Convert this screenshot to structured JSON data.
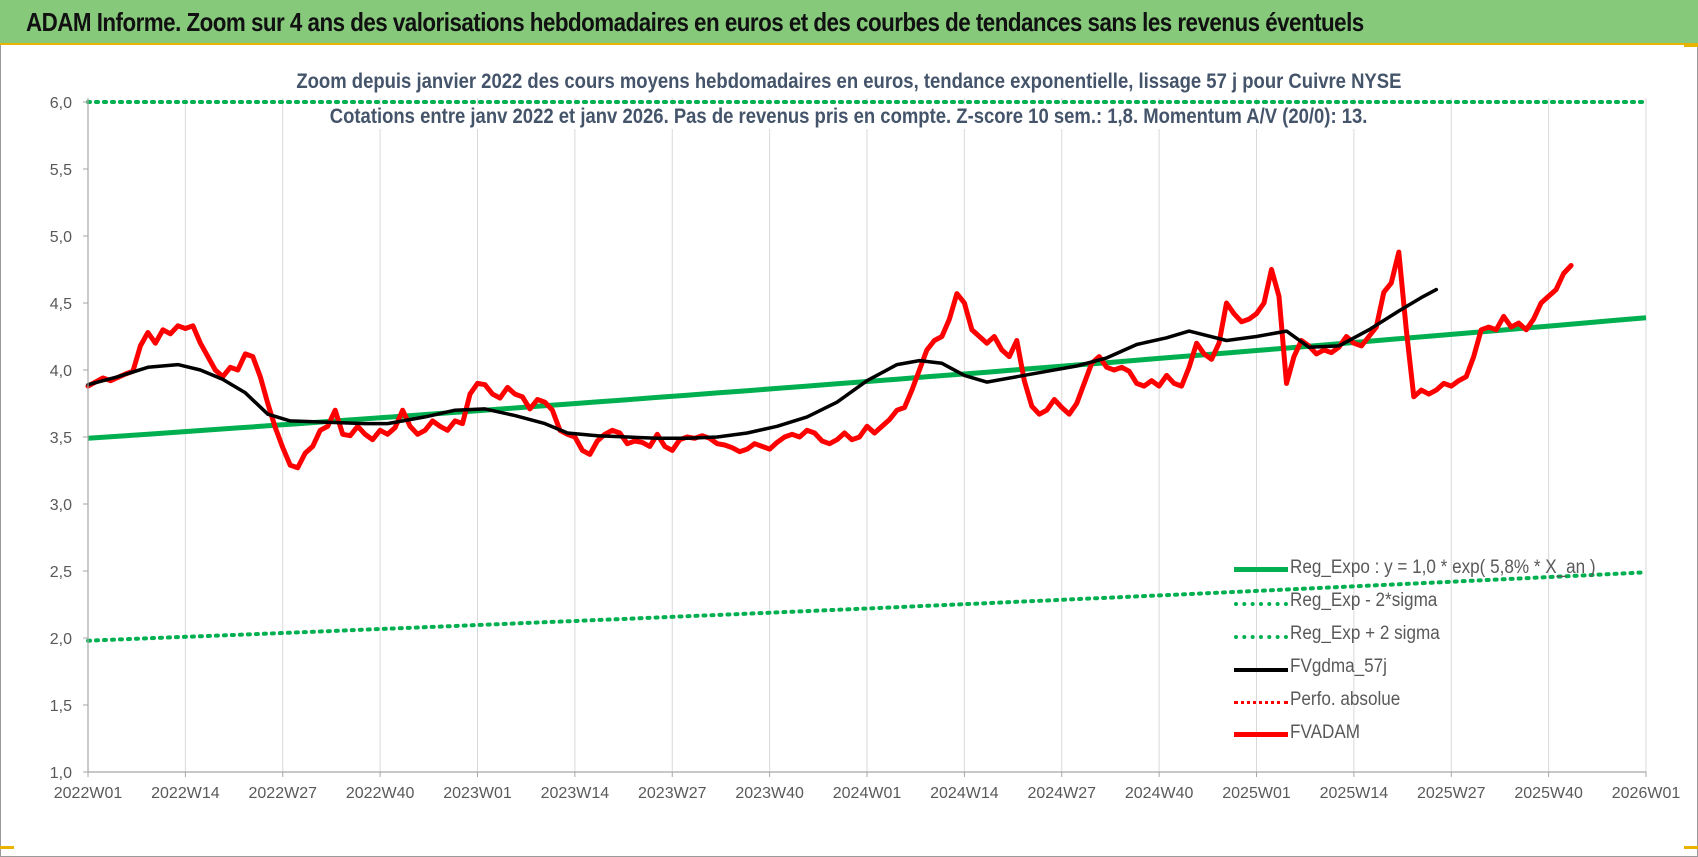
{
  "banner": {
    "title": "ADAM Informe. Zoom sur 4 ans des valorisations hebdomadaires en euros et des courbes de tendances sans les revenus éventuels"
  },
  "colors": {
    "banner_bg": "#86c97b",
    "banner_border": "#e8b400",
    "regression": "#00b050",
    "sigma": "#00b050",
    "smoothing": "#000000",
    "price": "#ff0000",
    "perfo": "#ff0000",
    "subtitle_text": "#44546a",
    "axis_text": "#595959"
  },
  "chart_data": {
    "type": "line",
    "title": "Zoom depuis janvier 2022 des cours moyens hebdomadaires en euros, tendance exponentielle, lissage 57 j pour Cuivre NYSE",
    "subtitle": "Cotations entre janv 2022 et janv 2026. Pas de revenus pris en compte. Z-score 10 sem.: 1,8. Momentum A/V (20/0): 13.",
    "xlabel": "",
    "ylabel": "",
    "ylim": [
      1.0,
      6.0
    ],
    "yticks": [
      "1,0",
      "1,5",
      "2,0",
      "2,5",
      "3,0",
      "3,5",
      "4,0",
      "4,5",
      "5,0",
      "5,5",
      "6,0"
    ],
    "xticks": [
      "2022W01",
      "2022W14",
      "2022W27",
      "2022W40",
      "2023W01",
      "2023W14",
      "2023W27",
      "2023W40",
      "2024W01",
      "2024W14",
      "2024W27",
      "2024W40",
      "2025W01",
      "2025W14",
      "2025W27",
      "2025W40",
      "2026W01"
    ],
    "grid": "vertical",
    "legend_position": "bottom-right",
    "series": [
      {
        "name": "Reg_Expo : y = 1,0 * exp( 5,8% * X_an )",
        "style": "solid-thick",
        "color": "#00b050",
        "start": 3.49,
        "end": 4.39
      },
      {
        "name": "Reg_Exp - 2*sigma",
        "style": "dotted",
        "color": "#00b050",
        "start": 1.98,
        "end": 2.49
      },
      {
        "name": "Reg_Exp + 2 sigma",
        "style": "dotted",
        "color": "#00b050",
        "start": 6.0,
        "end": 6.0
      },
      {
        "name": "FVgdma_57j",
        "style": "solid",
        "color": "#000000",
        "points": [
          [
            0,
            3.89
          ],
          [
            4,
            3.95
          ],
          [
            8,
            4.02
          ],
          [
            12,
            4.04
          ],
          [
            15,
            4.0
          ],
          [
            18,
            3.93
          ],
          [
            21,
            3.83
          ],
          [
            24,
            3.67
          ],
          [
            27,
            3.62
          ],
          [
            32,
            3.61
          ],
          [
            37,
            3.6
          ],
          [
            40,
            3.6
          ],
          [
            45,
            3.65
          ],
          [
            49,
            3.7
          ],
          [
            53,
            3.71
          ],
          [
            57,
            3.66
          ],
          [
            61,
            3.6
          ],
          [
            64,
            3.53
          ],
          [
            68,
            3.51
          ],
          [
            72,
            3.5
          ],
          [
            76,
            3.49
          ],
          [
            80,
            3.49
          ],
          [
            84,
            3.5
          ],
          [
            88,
            3.53
          ],
          [
            92,
            3.58
          ],
          [
            96,
            3.65
          ],
          [
            100,
            3.76
          ],
          [
            104,
            3.92
          ],
          [
            108,
            4.04
          ],
          [
            111,
            4.07
          ],
          [
            114,
            4.05
          ],
          [
            117,
            3.96
          ],
          [
            120,
            3.91
          ],
          [
            124,
            3.95
          ],
          [
            128,
            3.99
          ],
          [
            132,
            4.03
          ],
          [
            136,
            4.09
          ],
          [
            140,
            4.19
          ],
          [
            144,
            4.24
          ],
          [
            147,
            4.29
          ],
          [
            152,
            4.22
          ],
          [
            156,
            4.25
          ],
          [
            160,
            4.29
          ],
          [
            163,
            4.17
          ],
          [
            167,
            4.18
          ],
          [
            171,
            4.3
          ],
          [
            175,
            4.44
          ],
          [
            178,
            4.54
          ],
          [
            180,
            4.6
          ]
        ]
      },
      {
        "name": "Perfo. absolue",
        "style": "dotted",
        "color": "#ff0000",
        "points": []
      },
      {
        "name": "FVADAM",
        "style": "solid-thick",
        "color": "#ff0000",
        "points": [
          [
            0,
            3.88
          ],
          [
            2,
            3.94
          ],
          [
            3,
            3.92
          ],
          [
            5,
            3.97
          ],
          [
            6,
            3.99
          ],
          [
            7,
            4.18
          ],
          [
            8,
            4.28
          ],
          [
            9,
            4.2
          ],
          [
            10,
            4.3
          ],
          [
            11,
            4.27
          ],
          [
            12,
            4.33
          ],
          [
            13,
            4.31
          ],
          [
            14,
            4.33
          ],
          [
            15,
            4.2
          ],
          [
            17,
            4.0
          ],
          [
            18,
            3.95
          ],
          [
            19,
            4.02
          ],
          [
            20,
            4.0
          ],
          [
            21,
            4.12
          ],
          [
            22,
            4.1
          ],
          [
            23,
            3.95
          ],
          [
            24,
            3.75
          ],
          [
            25,
            3.57
          ],
          [
            26,
            3.42
          ],
          [
            27,
            3.29
          ],
          [
            28,
            3.27
          ],
          [
            29,
            3.38
          ],
          [
            30,
            3.43
          ],
          [
            31,
            3.55
          ],
          [
            32,
            3.58
          ],
          [
            33,
            3.7
          ],
          [
            34,
            3.52
          ],
          [
            35,
            3.51
          ],
          [
            36,
            3.58
          ],
          [
            37,
            3.52
          ],
          [
            38,
            3.48
          ],
          [
            39,
            3.55
          ],
          [
            40,
            3.52
          ],
          [
            41,
            3.57
          ],
          [
            42,
            3.7
          ],
          [
            43,
            3.58
          ],
          [
            44,
            3.52
          ],
          [
            45,
            3.55
          ],
          [
            46,
            3.62
          ],
          [
            47,
            3.58
          ],
          [
            48,
            3.55
          ],
          [
            49,
            3.62
          ],
          [
            50,
            3.6
          ],
          [
            51,
            3.82
          ],
          [
            52,
            3.9
          ],
          [
            53,
            3.89
          ],
          [
            54,
            3.82
          ],
          [
            55,
            3.79
          ],
          [
            56,
            3.87
          ],
          [
            57,
            3.82
          ],
          [
            58,
            3.8
          ],
          [
            59,
            3.71
          ],
          [
            60,
            3.78
          ],
          [
            61,
            3.76
          ],
          [
            62,
            3.7
          ],
          [
            63,
            3.55
          ],
          [
            64,
            3.52
          ],
          [
            65,
            3.5
          ],
          [
            66,
            3.4
          ],
          [
            67,
            3.37
          ],
          [
            68,
            3.47
          ],
          [
            69,
            3.52
          ],
          [
            70,
            3.55
          ],
          [
            71,
            3.53
          ],
          [
            72,
            3.45
          ],
          [
            73,
            3.47
          ],
          [
            74,
            3.46
          ],
          [
            75,
            3.43
          ],
          [
            76,
            3.52
          ],
          [
            77,
            3.43
          ],
          [
            78,
            3.4
          ],
          [
            79,
            3.48
          ],
          [
            80,
            3.5
          ],
          [
            81,
            3.49
          ],
          [
            82,
            3.51
          ],
          [
            83,
            3.49
          ],
          [
            84,
            3.45
          ],
          [
            85,
            3.44
          ],
          [
            86,
            3.42
          ],
          [
            87,
            3.39
          ],
          [
            88,
            3.41
          ],
          [
            89,
            3.45
          ],
          [
            90,
            3.43
          ],
          [
            91,
            3.41
          ],
          [
            92,
            3.46
          ],
          [
            93,
            3.5
          ],
          [
            94,
            3.52
          ],
          [
            95,
            3.5
          ],
          [
            96,
            3.55
          ],
          [
            97,
            3.53
          ],
          [
            98,
            3.47
          ],
          [
            99,
            3.45
          ],
          [
            100,
            3.48
          ],
          [
            101,
            3.53
          ],
          [
            102,
            3.48
          ],
          [
            103,
            3.5
          ],
          [
            104,
            3.58
          ],
          [
            105,
            3.53
          ],
          [
            106,
            3.58
          ],
          [
            107,
            3.63
          ],
          [
            108,
            3.7
          ],
          [
            109,
            3.72
          ],
          [
            110,
            3.85
          ],
          [
            111,
            4.0
          ],
          [
            112,
            4.15
          ],
          [
            113,
            4.22
          ],
          [
            114,
            4.25
          ],
          [
            115,
            4.38
          ],
          [
            116,
            4.57
          ],
          [
            117,
            4.5
          ],
          [
            118,
            4.3
          ],
          [
            119,
            4.25
          ],
          [
            120,
            4.2
          ],
          [
            121,
            4.25
          ],
          [
            122,
            4.15
          ],
          [
            123,
            4.1
          ],
          [
            124,
            4.22
          ],
          [
            125,
            3.92
          ],
          [
            126,
            3.73
          ],
          [
            127,
            3.67
          ],
          [
            128,
            3.7
          ],
          [
            129,
            3.78
          ],
          [
            130,
            3.72
          ],
          [
            131,
            3.67
          ],
          [
            132,
            3.75
          ],
          [
            133,
            3.9
          ],
          [
            134,
            4.05
          ],
          [
            135,
            4.1
          ],
          [
            136,
            4.02
          ],
          [
            137,
            4.0
          ],
          [
            138,
            4.02
          ],
          [
            139,
            3.99
          ],
          [
            140,
            3.9
          ],
          [
            141,
            3.88
          ],
          [
            142,
            3.92
          ],
          [
            143,
            3.88
          ],
          [
            144,
            3.96
          ],
          [
            145,
            3.9
          ],
          [
            146,
            3.88
          ],
          [
            147,
            4.02
          ],
          [
            148,
            4.2
          ],
          [
            149,
            4.12
          ],
          [
            150,
            4.08
          ],
          [
            151,
            4.2
          ],
          [
            152,
            4.5
          ],
          [
            153,
            4.42
          ],
          [
            154,
            4.36
          ],
          [
            155,
            4.38
          ],
          [
            156,
            4.42
          ],
          [
            157,
            4.5
          ],
          [
            158,
            4.75
          ],
          [
            159,
            4.55
          ],
          [
            160,
            3.9
          ],
          [
            161,
            4.1
          ],
          [
            162,
            4.22
          ],
          [
            163,
            4.18
          ],
          [
            164,
            4.12
          ],
          [
            165,
            4.15
          ],
          [
            166,
            4.13
          ],
          [
            167,
            4.17
          ],
          [
            168,
            4.25
          ],
          [
            169,
            4.2
          ],
          [
            170,
            4.18
          ],
          [
            171,
            4.25
          ],
          [
            172,
            4.32
          ],
          [
            173,
            4.58
          ],
          [
            174,
            4.65
          ],
          [
            175,
            4.88
          ],
          [
            176,
            4.3
          ],
          [
            177,
            3.8
          ],
          [
            178,
            3.85
          ],
          [
            179,
            3.82
          ],
          [
            180,
            3.85
          ],
          [
            181,
            3.9
          ],
          [
            182,
            3.88
          ],
          [
            183,
            3.92
          ],
          [
            184,
            3.95
          ],
          [
            185,
            4.1
          ],
          [
            186,
            4.3
          ],
          [
            187,
            4.32
          ],
          [
            188,
            4.3
          ],
          [
            189,
            4.4
          ],
          [
            190,
            4.32
          ],
          [
            191,
            4.35
          ],
          [
            192,
            4.3
          ],
          [
            193,
            4.38
          ],
          [
            194,
            4.5
          ],
          [
            195,
            4.55
          ],
          [
            196,
            4.6
          ],
          [
            197,
            4.72
          ],
          [
            198,
            4.78
          ]
        ]
      }
    ]
  }
}
